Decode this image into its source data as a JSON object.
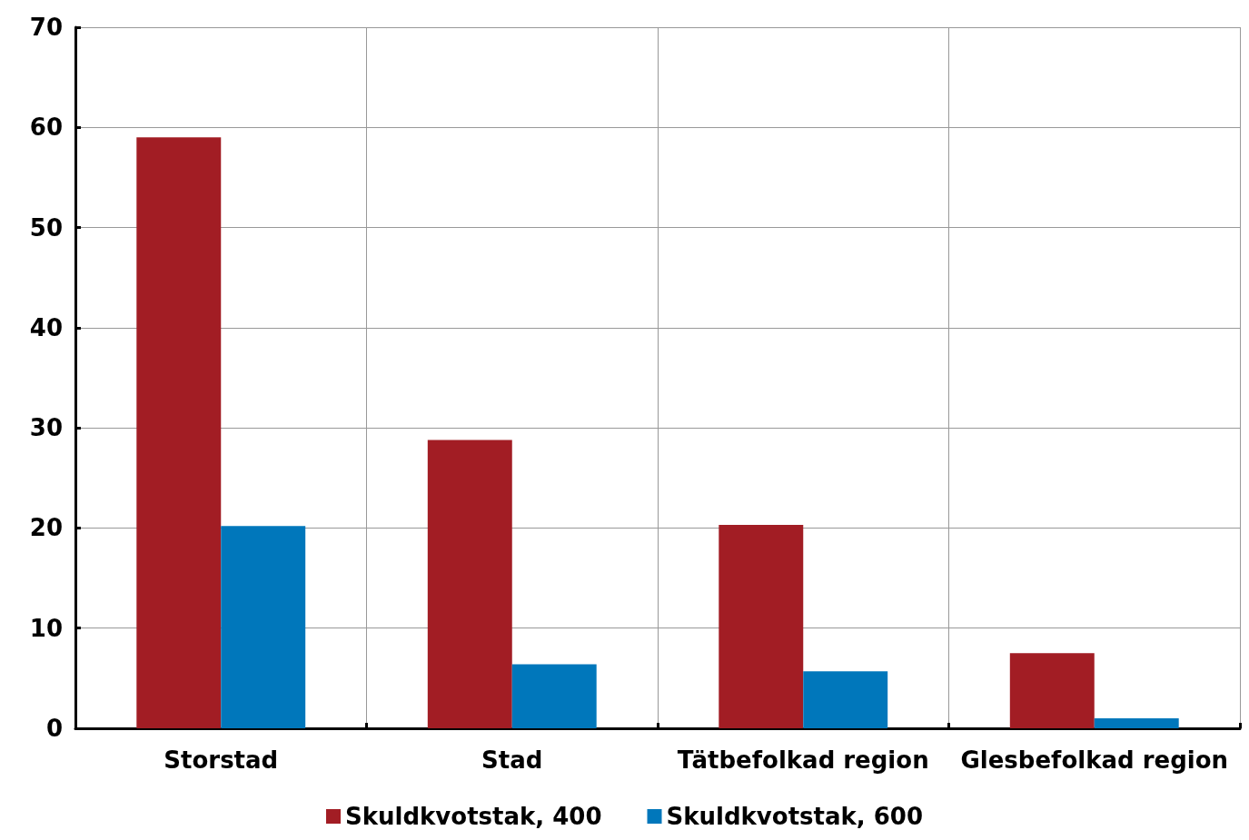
{
  "chart_data": {
    "type": "bar",
    "categories": [
      "Storstad",
      "Stad",
      "Tätbefolkad region",
      "Glesbefolkad region"
    ],
    "series": [
      {
        "name": "Skuldkvotstak, 400",
        "color": "#a21d24",
        "values": [
          59.0,
          28.8,
          20.3,
          7.5
        ]
      },
      {
        "name": "Skuldkvotstak, 600",
        "color": "#0077bb",
        "values": [
          20.2,
          6.4,
          5.7,
          1.0
        ]
      }
    ],
    "ylim": [
      0,
      70
    ],
    "yticks": [
      0,
      10,
      20,
      30,
      40,
      50,
      60,
      70
    ],
    "grid": true,
    "legend": "bottom"
  }
}
